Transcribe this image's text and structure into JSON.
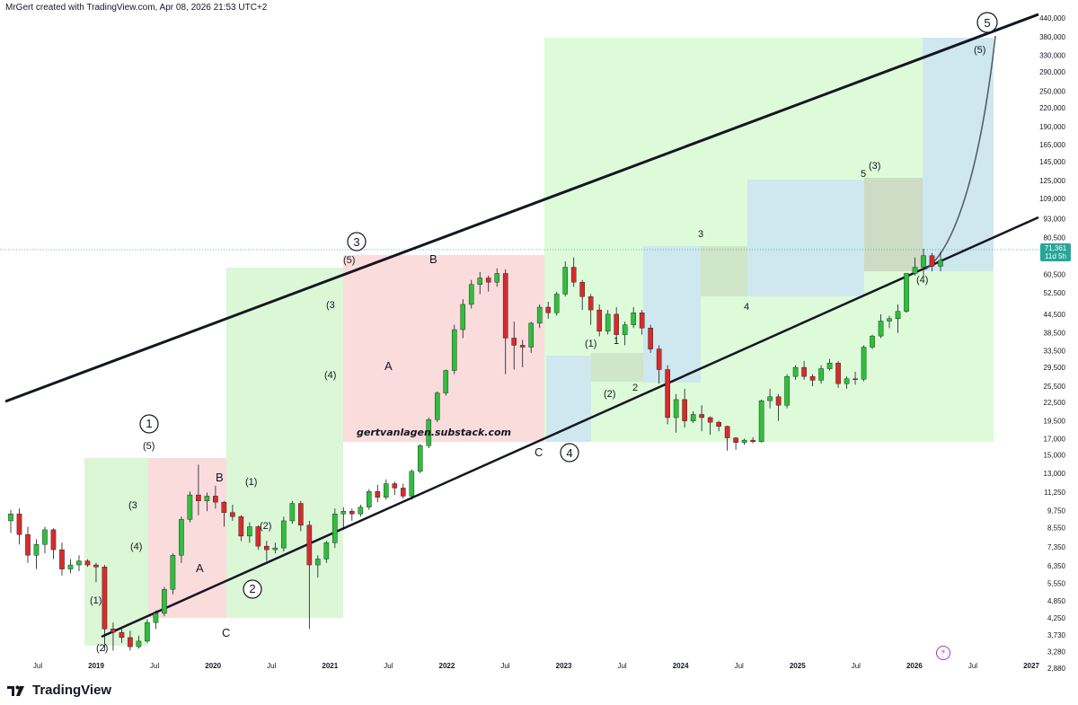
{
  "header": {
    "text": "MrGert created with TradingView.com, Apr 08, 2026 21:53 UTC+2"
  },
  "brand": {
    "name": "TradingView"
  },
  "watermark": "gertvanlagen.substack.com",
  "last_price": {
    "value": "71,361",
    "countdown": "11d 5h"
  },
  "colors": {
    "up": "#2fbf3b",
    "down": "#d82b2b",
    "green_zone": "#d8f7d3",
    "red_zone": "#fbd7d7",
    "blue_zone": "#cfe7ef",
    "grey_zone": "#c6d3c3",
    "channel": "#131722",
    "axis_text": "#131722"
  },
  "icons": {
    "bolt": "lightning-icon",
    "logo": "tradingview-logo-icon"
  },
  "chart_data": {
    "type": "candlestick",
    "scale": "log",
    "y_ticks": [
      "440,000",
      "380,000",
      "330,000",
      "290,000",
      "250,000",
      "220,000",
      "190,000",
      "165,000",
      "145,000",
      "125,000",
      "109,000",
      "93,000",
      "80,500",
      "70,500",
      "60,500",
      "52,500",
      "44,500",
      "38,500",
      "33,500",
      "29,500",
      "25,500",
      "22,500",
      "19,500",
      "17,000",
      "15,000",
      "13,000",
      "11,250",
      "9,750",
      "8,550",
      "7,350",
      "6,350",
      "5,550",
      "4,850",
      "4,250",
      "3,730",
      "3,280",
      "2,880"
    ],
    "x_ticks": [
      {
        "label": "Jul",
        "date": 2018.5
      },
      {
        "label": "2019",
        "date": 2019.0
      },
      {
        "label": "Jul",
        "date": 2019.5
      },
      {
        "label": "2020",
        "date": 2020.0
      },
      {
        "label": "Jul",
        "date": 2020.5
      },
      {
        "label": "2021",
        "date": 2021.0
      },
      {
        "label": "Jul",
        "date": 2021.5
      },
      {
        "label": "2022",
        "date": 2022.0
      },
      {
        "label": "Jul",
        "date": 2022.5
      },
      {
        "label": "2023",
        "date": 2023.0
      },
      {
        "label": "Jul",
        "date": 2023.5
      },
      {
        "label": "2024",
        "date": 2024.0
      },
      {
        "label": "Jul",
        "date": 2024.5
      },
      {
        "label": "2025",
        "date": 2025.0
      },
      {
        "label": "Jul",
        "date": 2025.5
      },
      {
        "label": "2026",
        "date": 2026.0
      },
      {
        "label": "Jul",
        "date": 2026.5
      },
      {
        "label": "2027",
        "date": 2027.0
      }
    ],
    "candles": [
      [
        2018.0,
        9000,
        9800,
        8200,
        9500
      ],
      [
        2018.08,
        9500,
        9900,
        7500,
        8100
      ],
      [
        2018.16,
        8100,
        8600,
        6500,
        6900
      ],
      [
        2018.25,
        6900,
        7800,
        6200,
        7500
      ],
      [
        2018.33,
        7500,
        8600,
        7000,
        8400
      ],
      [
        2018.41,
        8400,
        8500,
        6700,
        7200
      ],
      [
        2018.5,
        7200,
        7600,
        5900,
        6200
      ],
      [
        2018.58,
        6200,
        6700,
        6000,
        6400
      ],
      [
        2018.66,
        6400,
        6900,
        6100,
        6600
      ],
      [
        2018.74,
        6600,
        6700,
        6300,
        6400
      ],
      [
        2018.82,
        6400,
        6500,
        5600,
        6300
      ],
      [
        2018.9,
        6300,
        6400,
        3300,
        3900
      ],
      [
        2018.98,
        3900,
        4100,
        3300,
        3800
      ],
      [
        2019.06,
        3800,
        3950,
        3500,
        3650
      ],
      [
        2019.14,
        3650,
        3850,
        3300,
        3400
      ],
      [
        2019.22,
        3400,
        3700,
        3350,
        3550
      ],
      [
        2019.3,
        3550,
        4200,
        3500,
        4100
      ],
      [
        2019.38,
        4100,
        4500,
        3900,
        4400
      ],
      [
        2019.46,
        4400,
        5400,
        4300,
        5300
      ],
      [
        2019.54,
        5300,
        7000,
        5100,
        6900
      ],
      [
        2019.62,
        6900,
        9300,
        6500,
        9100
      ],
      [
        2019.7,
        9100,
        11300,
        8900,
        11000
      ],
      [
        2019.78,
        11000,
        13900,
        9400,
        10500
      ],
      [
        2019.86,
        10500,
        11200,
        9700,
        10900
      ],
      [
        2019.94,
        10900,
        11800,
        9900,
        10400
      ],
      [
        2020.02,
        10400,
        10500,
        8600,
        9600
      ],
      [
        2020.1,
        9600,
        10200,
        9000,
        9300
      ],
      [
        2020.18,
        9300,
        9400,
        7700,
        8000
      ],
      [
        2020.26,
        8000,
        8900,
        7600,
        8600
      ],
      [
        2020.34,
        8600,
        8700,
        7200,
        7400
      ],
      [
        2020.42,
        7400,
        7700,
        6600,
        7200
      ],
      [
        2020.5,
        7200,
        7600,
        7000,
        7300
      ],
      [
        2020.58,
        7300,
        9300,
        7100,
        9000
      ],
      [
        2020.66,
        9000,
        10500,
        8800,
        10300
      ],
      [
        2020.74,
        10300,
        10500,
        8300,
        8700
      ],
      [
        2020.82,
        8700,
        9000,
        3900,
        6400
      ],
      [
        2020.9,
        6400,
        6900,
        5800,
        6700
      ],
      [
        2020.98,
        6700,
        7700,
        6500,
        7600
      ],
      [
        2021.06,
        7600,
        9900,
        7300,
        9500
      ],
      [
        2021.14,
        9500,
        10000,
        8400,
        9700
      ],
      [
        2021.22,
        9700,
        9900,
        9000,
        9500
      ],
      [
        2021.3,
        9500,
        10200,
        9300,
        10000
      ],
      [
        2021.38,
        10000,
        11500,
        9800,
        11300
      ],
      [
        2021.46,
        11300,
        11900,
        10400,
        10800
      ],
      [
        2021.54,
        10800,
        12400,
        10600,
        12000
      ],
      [
        2021.62,
        12000,
        12200,
        11000,
        11600
      ],
      [
        2021.7,
        11600,
        12000,
        10700,
        10900
      ],
      [
        2021.78,
        10900,
        13400,
        10600,
        13200
      ],
      [
        2021.86,
        13200,
        16300,
        13000,
        16100
      ],
      [
        2021.94,
        16100,
        20000,
        15800,
        19700
      ],
      [
        2022.02,
        19700,
        24500,
        19300,
        24200
      ],
      [
        2022.1,
        24200,
        29000,
        23700,
        28800
      ],
      [
        2022.18,
        28800,
        41000,
        28000,
        39500
      ],
      [
        2022.26,
        39500,
        50000,
        37000,
        48000
      ],
      [
        2022.34,
        48000,
        58000,
        46500,
        56000
      ],
      [
        2022.42,
        56000,
        61700,
        52000,
        58900
      ],
      [
        2022.5,
        58900,
        60000,
        53000,
        57000
      ],
      [
        2022.58,
        57000,
        63500,
        55000,
        61000
      ],
      [
        2022.66,
        61000,
        63000,
        28000,
        37000
      ],
      [
        2022.74,
        37000,
        42000,
        29000,
        35000
      ],
      [
        2022.82,
        35000,
        36500,
        29500,
        34500
      ],
      [
        2022.9,
        34500,
        42000,
        33000,
        41500
      ],
      [
        2022.98,
        41500,
        48000,
        40000,
        47000
      ],
      [
        2023.06,
        47000,
        49000,
        43000,
        45000
      ],
      [
        2023.14,
        45000,
        53000,
        44000,
        52000
      ],
      [
        2023.22,
        52000,
        67000,
        51000,
        64000
      ],
      [
        2023.3,
        64000,
        69000,
        55000,
        57000
      ],
      [
        2023.38,
        57000,
        58000,
        46000,
        51000
      ],
      [
        2023.46,
        51000,
        52000,
        41000,
        46000
      ],
      [
        2023.54,
        46000,
        48000,
        37500,
        39000
      ],
      [
        2023.62,
        39000,
        46000,
        38000,
        44500
      ],
      [
        2023.7,
        44500,
        47000,
        36000,
        38000
      ],
      [
        2023.78,
        38000,
        42000,
        35000,
        41000
      ],
      [
        2023.86,
        41000,
        47000,
        40000,
        45000
      ],
      [
        2023.94,
        45000,
        46000,
        38000,
        40000
      ],
      [
        2024.02,
        40000,
        41000,
        33000,
        34000
      ],
      [
        2024.1,
        34000,
        35000,
        26000,
        29000
      ],
      [
        2024.18,
        29000,
        30000,
        19000,
        20000
      ],
      [
        2024.26,
        20000,
        24000,
        17800,
        23000
      ],
      [
        2024.34,
        23000,
        25000,
        18500,
        19500
      ],
      [
        2024.42,
        19500,
        21000,
        19200,
        20500
      ],
      [
        2024.5,
        20500,
        22000,
        18000,
        20000
      ],
      [
        2024.58,
        20000,
        20200,
        17500,
        19300
      ],
      [
        2024.66,
        19300,
        19500,
        18000,
        18700
      ],
      [
        2024.74,
        18700,
        18800,
        15500,
        17100
      ],
      [
        2024.82,
        17100,
        17200,
        15600,
        16500
      ]
    ],
    "candles_2": [
      [
        2024.9,
        16500,
        17000,
        16200,
        16800
      ],
      [
        2024.98,
        16800,
        17200,
        16400,
        16600
      ],
      [
        2025.06,
        16600,
        23000,
        16500,
        22800
      ],
      [
        2025.14,
        22800,
        25000,
        21500,
        23500
      ],
      [
        2025.22,
        23500,
        24000,
        19500,
        22000
      ],
      [
        2025.3,
        22000,
        28000,
        21500,
        27500
      ],
      [
        2025.38,
        27500,
        30000,
        26800,
        29500
      ],
      [
        2025.46,
        29500,
        31000,
        26800,
        27500
      ],
      [
        2025.54,
        27500,
        28000,
        25500,
        26700
      ],
      [
        2025.62,
        26700,
        30000,
        26000,
        29200
      ],
      [
        2025.7,
        29200,
        31500,
        28800,
        30500
      ],
      [
        2025.78,
        30500,
        31000,
        25200,
        26000
      ],
      [
        2025.86,
        26000,
        27500,
        25000,
        27000
      ],
      [
        2025.94,
        27000,
        28500,
        25800,
        26900
      ],
      [
        2026.02,
        26900,
        35000,
        26500,
        34500
      ],
      [
        2026.1,
        34500,
        38000,
        34000,
        37600
      ],
      [
        2026.18,
        37600,
        44500,
        37000,
        42200
      ],
      [
        2026.26,
        42200,
        44000,
        40000,
        43000
      ],
      [
        2026.34,
        43000,
        48000,
        38500,
        45500
      ],
      [
        2026.42,
        45500,
        61000,
        45000,
        61000
      ],
      [
        2026.5,
        61000,
        69000,
        60000,
        64000
      ],
      [
        2026.58,
        64000,
        73800,
        59000,
        70000
      ],
      [
        2026.66,
        70000,
        71500,
        62000,
        64500
      ],
      [
        2026.74,
        64500,
        72000,
        62000,
        67500
      ]
    ]
  },
  "labels": {
    "c1": "1",
    "c2": "2",
    "c3": "3",
    "c4": "4",
    "c5": "5",
    "w5a": "(5)",
    "w1a": "(1)",
    "w2a": "(2)",
    "w3a": "(3",
    "w4a": "(4)",
    "Ba": "B",
    "Aa": "A",
    "Ca": "C",
    "w1b": "(1)",
    "w2b": "(2)",
    "w3b": "(3",
    "w4b": "(4)",
    "w5b": "(5)",
    "Ab": "A",
    "Bb": "B",
    "Cb": "C",
    "w1c": "(1)",
    "i1c": "1",
    "w2c": "(2)",
    "i2c": "2",
    "i3d": "3",
    "i4d": "4",
    "i5d": "5",
    "w3d": "(3)",
    "w4d": "(4)",
    "w5d": "(5)"
  }
}
